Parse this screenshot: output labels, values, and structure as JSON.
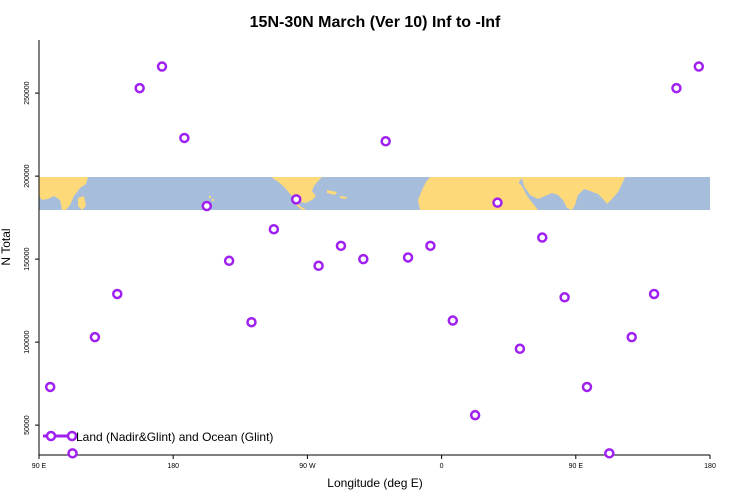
{
  "chart_data": {
    "type": "scatter",
    "title": "15N-30N March (Ver 10)   Inf to -Inf",
    "xlabel": "Longitude (deg E)",
    "ylabel": "N Total",
    "xlim": [
      90,
      540
    ],
    "ylim": [
      32000,
      282000
    ],
    "x_ticks": [
      {
        "value": 90,
        "label": "90 E"
      },
      {
        "value": 180,
        "label": "180"
      },
      {
        "value": 270,
        "label": "90 W"
      },
      {
        "value": 360,
        "label": "0"
      },
      {
        "value": 450,
        "label": "90 E"
      },
      {
        "value": 540,
        "label": "180"
      }
    ],
    "y_ticks": [
      {
        "value": 50000,
        "label": "50000"
      },
      {
        "value": 100000,
        "label": "100000"
      },
      {
        "value": 150000,
        "label": "150000"
      },
      {
        "value": 200000,
        "label": "200000"
      },
      {
        "value": 250000,
        "label": "250000"
      }
    ],
    "series": [
      {
        "name": "Land (Nadir&Glint) and Ocean (Glint)",
        "color": "#a020f0",
        "x": [
          97.5,
          112.5,
          127.5,
          142.5,
          157.5,
          172.5,
          187.5,
          202.5,
          217.5,
          232.5,
          247.5,
          262.5,
          277.5,
          292.5,
          307.5,
          322.5,
          337.5,
          352.5,
          367.5,
          382.5,
          397.5,
          412.5,
          427.5,
          442.5,
          457.5,
          472.5,
          487.5,
          502.5,
          517.5,
          532.5
        ],
        "y": [
          73000,
          33000,
          103000,
          129000,
          253000,
          266000,
          223000,
          182000,
          149000,
          112000,
          168000,
          186000,
          146000,
          158000,
          150000,
          221000,
          151000,
          158000,
          113000,
          56000,
          184000,
          96000,
          163000,
          127000,
          73000,
          33000,
          103000,
          129000,
          253000,
          266000
        ]
      }
    ],
    "map_band": {
      "lat_range": "15N-30N",
      "land_color": "#fdd97a",
      "ocean_color": "#a6bddb"
    },
    "legend": {
      "position": "bottom-left",
      "label": "Land (Nadir&Glint) and Ocean (Glint)"
    }
  }
}
